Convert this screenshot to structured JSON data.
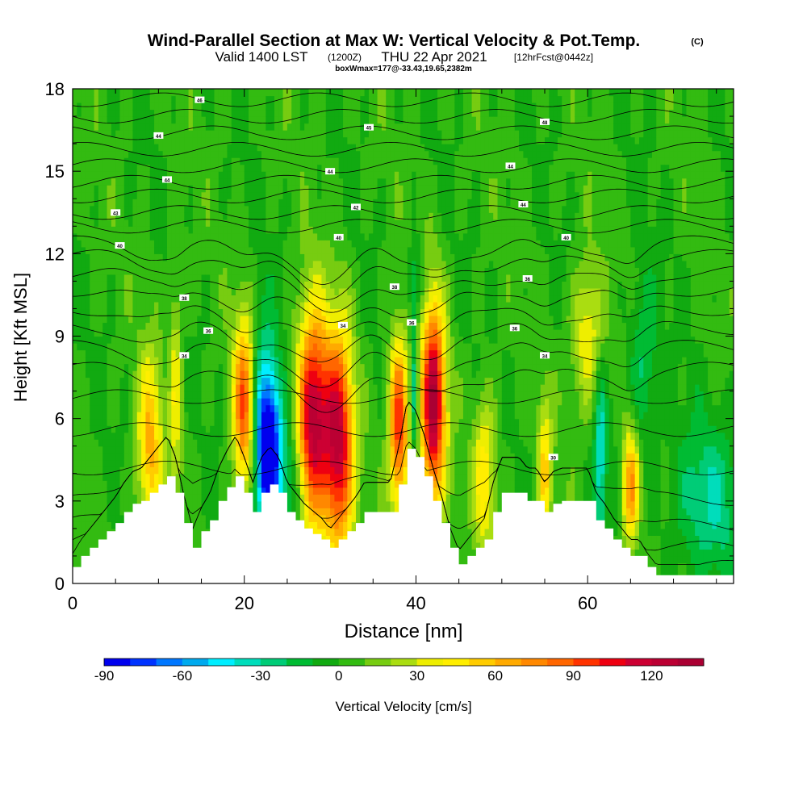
{
  "chart_data": {
    "type": "heatmap",
    "title": "Wind-Parallel Section at Max W: Vertical Velocity & Pot.Temp.",
    "title_mark": "(C)",
    "subtitle_main": "Valid 1400 LST",
    "subtitle_utc": "(1200Z)",
    "subtitle_date": "THU 22 Apr 2021",
    "subtitle_forecast": "[12hrFcst@0442z]",
    "box_info": "boxWmax=177@-33.43,19.65,2382m",
    "xlabel": "Distance [nm]",
    "ylabel": "Height [Kft MSL]",
    "xlim": [
      0,
      77
    ],
    "ylim": [
      0,
      18
    ],
    "x_ticks": [
      "0",
      "20",
      "40",
      "60"
    ],
    "y_ticks": [
      "0",
      "3",
      "6",
      "9",
      "12",
      "15",
      "18"
    ],
    "colorbar": {
      "label": "Vertical Velocity [cm/s]",
      "tick_labels": [
        "-90",
        "-60",
        "-30",
        "0",
        "30",
        "60",
        "90",
        "120"
      ],
      "min": -90,
      "max": 140,
      "step": 10,
      "colors": [
        "#0000ee",
        "#0033ff",
        "#0077ff",
        "#00aaee",
        "#00eeff",
        "#00ddbb",
        "#00cc77",
        "#00bb33",
        "#11aa11",
        "#33bb11",
        "#77cc11",
        "#aadd11",
        "#eeee00",
        "#ffee00",
        "#ffcc00",
        "#ffaa00",
        "#ff8800",
        "#ff6600",
        "#ff3300",
        "#ee0011",
        "#cc0033",
        "#bb0033",
        "#aa0033"
      ]
    },
    "terrain_profile_kft": [
      [
        0,
        0.6
      ],
      [
        1,
        1.0
      ],
      [
        2,
        1.3
      ],
      [
        3,
        1.6
      ],
      [
        4,
        1.9
      ],
      [
        5,
        2.2
      ],
      [
        6,
        2.6
      ],
      [
        7,
        2.9
      ],
      [
        8,
        3.0
      ],
      [
        9,
        3.3
      ],
      [
        10,
        3.6
      ],
      [
        11,
        3.9
      ],
      [
        12,
        3.3
      ],
      [
        13,
        2.2
      ],
      [
        14,
        1.3
      ],
      [
        15,
        1.9
      ],
      [
        16,
        2.3
      ],
      [
        17,
        3.0
      ],
      [
        18,
        3.5
      ],
      [
        19,
        3.9
      ],
      [
        20,
        3.3
      ],
      [
        21,
        2.6
      ],
      [
        22,
        3.3
      ],
      [
        23,
        3.6
      ],
      [
        24,
        3.3
      ],
      [
        25,
        2.6
      ],
      [
        26,
        2.3
      ],
      [
        27,
        2.0
      ],
      [
        28,
        1.8
      ],
      [
        29,
        1.6
      ],
      [
        30,
        1.3
      ],
      [
        31,
        1.6
      ],
      [
        32,
        1.9
      ],
      [
        33,
        2.2
      ],
      [
        34,
        2.6
      ],
      [
        35,
        2.6
      ],
      [
        36,
        2.6
      ],
      [
        37,
        2.6
      ],
      [
        38,
        3.6
      ],
      [
        39,
        4.9
      ],
      [
        40,
        4.6
      ],
      [
        41,
        3.9
      ],
      [
        42,
        3.0
      ],
      [
        43,
        2.2
      ],
      [
        44,
        1.3
      ],
      [
        45,
        0.7
      ],
      [
        46,
        1.0
      ],
      [
        47,
        1.3
      ],
      [
        48,
        1.6
      ],
      [
        49,
        2.6
      ],
      [
        50,
        3.3
      ],
      [
        51,
        3.3
      ],
      [
        52,
        3.3
      ],
      [
        53,
        3.0
      ],
      [
        54,
        3.0
      ],
      [
        55,
        2.6
      ],
      [
        56,
        2.9
      ],
      [
        57,
        3.0
      ],
      [
        58,
        3.0
      ],
      [
        59,
        3.0
      ],
      [
        60,
        3.0
      ],
      [
        61,
        2.3
      ],
      [
        62,
        2.0
      ],
      [
        63,
        1.6
      ],
      [
        64,
        1.3
      ],
      [
        65,
        1.0
      ],
      [
        66,
        1.0
      ],
      [
        67,
        0.6
      ],
      [
        68,
        0.3
      ],
      [
        69,
        0.3
      ],
      [
        77,
        0.3
      ]
    ],
    "updraft_cores": [
      {
        "x": 9.0,
        "z": 5.0,
        "sx": 1.0,
        "sz": 2.3,
        "w": 60
      },
      {
        "x": 12.0,
        "z": 7.0,
        "sx": 0.5,
        "sz": 3.0,
        "w": 35
      },
      {
        "x": 20.0,
        "z": 6.5,
        "sx": 0.9,
        "sz": 2.2,
        "w": 95
      },
      {
        "x": 28.0,
        "z": 6.0,
        "sx": 1.3,
        "sz": 2.7,
        "w": 125
      },
      {
        "x": 31.0,
        "z": 5.0,
        "sx": 1.2,
        "sz": 2.9,
        "w": 115
      },
      {
        "x": 38.0,
        "z": 5.8,
        "sx": 0.8,
        "sz": 2.2,
        "w": 100
      },
      {
        "x": 42.0,
        "z": 6.5,
        "sx": 1.0,
        "sz": 2.6,
        "w": 130
      },
      {
        "x": 48.0,
        "z": 4.0,
        "sx": 0.9,
        "sz": 2.0,
        "w": 45
      },
      {
        "x": 55.0,
        "z": 4.0,
        "sx": 0.6,
        "sz": 1.8,
        "w": 50
      },
      {
        "x": 60.0,
        "z": 9.0,
        "sx": 1.3,
        "sz": 1.8,
        "w": 40
      },
      {
        "x": 65.0,
        "z": 3.5,
        "sx": 0.7,
        "sz": 1.5,
        "w": 75
      }
    ],
    "downdraft_cores": [
      {
        "x": 23.0,
        "z": 4.5,
        "sx": 1.0,
        "sz": 2.0,
        "w": -90
      },
      {
        "x": 22.0,
        "z": 6.0,
        "sx": 1.2,
        "sz": 2.5,
        "w": -45
      },
      {
        "x": 25.5,
        "z": 3.5,
        "sx": 0.9,
        "sz": 1.5,
        "w": -30
      },
      {
        "x": 39.8,
        "z": 7.0,
        "sx": 0.3,
        "sz": 2.5,
        "w": -35
      },
      {
        "x": 61.5,
        "z": 4.5,
        "sx": 0.5,
        "sz": 2.5,
        "w": -40
      },
      {
        "x": 66.5,
        "z": 8.0,
        "sx": 1.2,
        "sz": 2.2,
        "w": -25
      },
      {
        "x": 74.0,
        "z": 3.0,
        "sx": 3.0,
        "sz": 2.0,
        "w": -30
      },
      {
        "x": 40.0,
        "z": 11.0,
        "sx": 0.8,
        "sz": 1.0,
        "w": -20
      }
    ],
    "isentropes": [
      {
        "z": 0.5
      },
      {
        "z": 1.2
      },
      {
        "z": 2.0
      },
      {
        "z": 3.0
      },
      {
        "z": 4.2
      },
      {
        "z": 5.6
      },
      {
        "z": 6.8
      },
      {
        "z": 7.8
      },
      {
        "z": 8.6
      },
      {
        "z": 9.3
      },
      {
        "z": 10.0
      },
      {
        "z": 10.7
      },
      {
        "z": 11.3
      },
      {
        "z": 11.9
      },
      {
        "z": 12.4
      },
      {
        "z": 13.0
      },
      {
        "z": 13.5
      },
      {
        "z": 14.1
      },
      {
        "z": 14.6
      },
      {
        "z": 15.2
      },
      {
        "z": 15.8
      },
      {
        "z": 16.4
      },
      {
        "z": 17.0
      },
      {
        "z": 17.6
      }
    ],
    "isentrope_labels": [
      {
        "text": "46",
        "x": 14.8,
        "z": 17.6
      },
      {
        "text": "45",
        "x": 34.5,
        "z": 16.6
      },
      {
        "text": "48",
        "x": 55.0,
        "z": 16.8
      },
      {
        "text": "44",
        "x": 10.0,
        "z": 16.3
      },
      {
        "text": "44",
        "x": 30.0,
        "z": 15.0
      },
      {
        "text": "44",
        "x": 51.0,
        "z": 15.2
      },
      {
        "text": "44",
        "x": 11.0,
        "z": 14.7
      },
      {
        "text": "42",
        "x": 33.0,
        "z": 13.7
      },
      {
        "text": "43",
        "x": 5.0,
        "z": 13.5
      },
      {
        "text": "44",
        "x": 52.5,
        "z": 13.8
      },
      {
        "text": "40",
        "x": 5.5,
        "z": 12.3
      },
      {
        "text": "40",
        "x": 31.0,
        "z": 12.6
      },
      {
        "text": "40",
        "x": 57.5,
        "z": 12.6
      },
      {
        "text": "36",
        "x": 53.0,
        "z": 11.1
      },
      {
        "text": "38",
        "x": 37.5,
        "z": 10.8
      },
      {
        "text": "38",
        "x": 13.0,
        "z": 10.4
      },
      {
        "text": "36",
        "x": 15.8,
        "z": 9.2
      },
      {
        "text": "34",
        "x": 31.5,
        "z": 9.4
      },
      {
        "text": "36",
        "x": 39.5,
        "z": 9.5
      },
      {
        "text": "36",
        "x": 51.5,
        "z": 9.3
      },
      {
        "text": "34",
        "x": 13.0,
        "z": 8.3
      },
      {
        "text": "34",
        "x": 55.0,
        "z": 8.3
      },
      {
        "text": "30",
        "x": 56.0,
        "z": 4.6
      }
    ]
  }
}
